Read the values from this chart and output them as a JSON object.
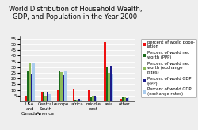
{
  "title": "World Distribution of Household Wealth,\nGDP, and Population in the Year 2000",
  "categories": [
    "USA\nand\nCanada",
    "Central\nSouth\nAmerica",
    "europe",
    "africa",
    "middle\neast",
    "asia",
    "other"
  ],
  "series": [
    {
      "label": "percent of world popu-\nlation",
      "color": "#EE1111",
      "values": [
        5,
        8,
        10,
        11,
        10,
        52,
        2
      ]
    },
    {
      "label": "Percent of world net\nworth (PPP)",
      "color": "#1A6B1A",
      "values": [
        27,
        8,
        27,
        1,
        4,
        30,
        4
      ]
    },
    {
      "label": "Percent of world net\nworth (exchange\nrates)",
      "color": "#8DBB5A",
      "values": [
        34,
        5,
        26,
        1,
        5,
        25,
        4
      ]
    },
    {
      "label": "Percent of world GDP\n(PPP)",
      "color": "#1A1A8B",
      "values": [
        24,
        8,
        23,
        2,
        5,
        31,
        3
      ]
    },
    {
      "label": "Percent of world GDP\n(exchange rates)",
      "color": "#AACCEE",
      "values": [
        33,
        6,
        27,
        1,
        4,
        24,
        4
      ]
    }
  ],
  "ylim": [
    0,
    57
  ],
  "yticks": [
    5,
    10,
    15,
    20,
    25,
    30,
    35,
    40,
    45,
    50,
    55
  ],
  "background_color": "#EEEEEE",
  "plot_bg_color": "#EEEEEE",
  "title_fontsize": 6.0,
  "legend_fontsize": 3.8,
  "tick_fontsize": 4.0,
  "bar_width": 0.12
}
